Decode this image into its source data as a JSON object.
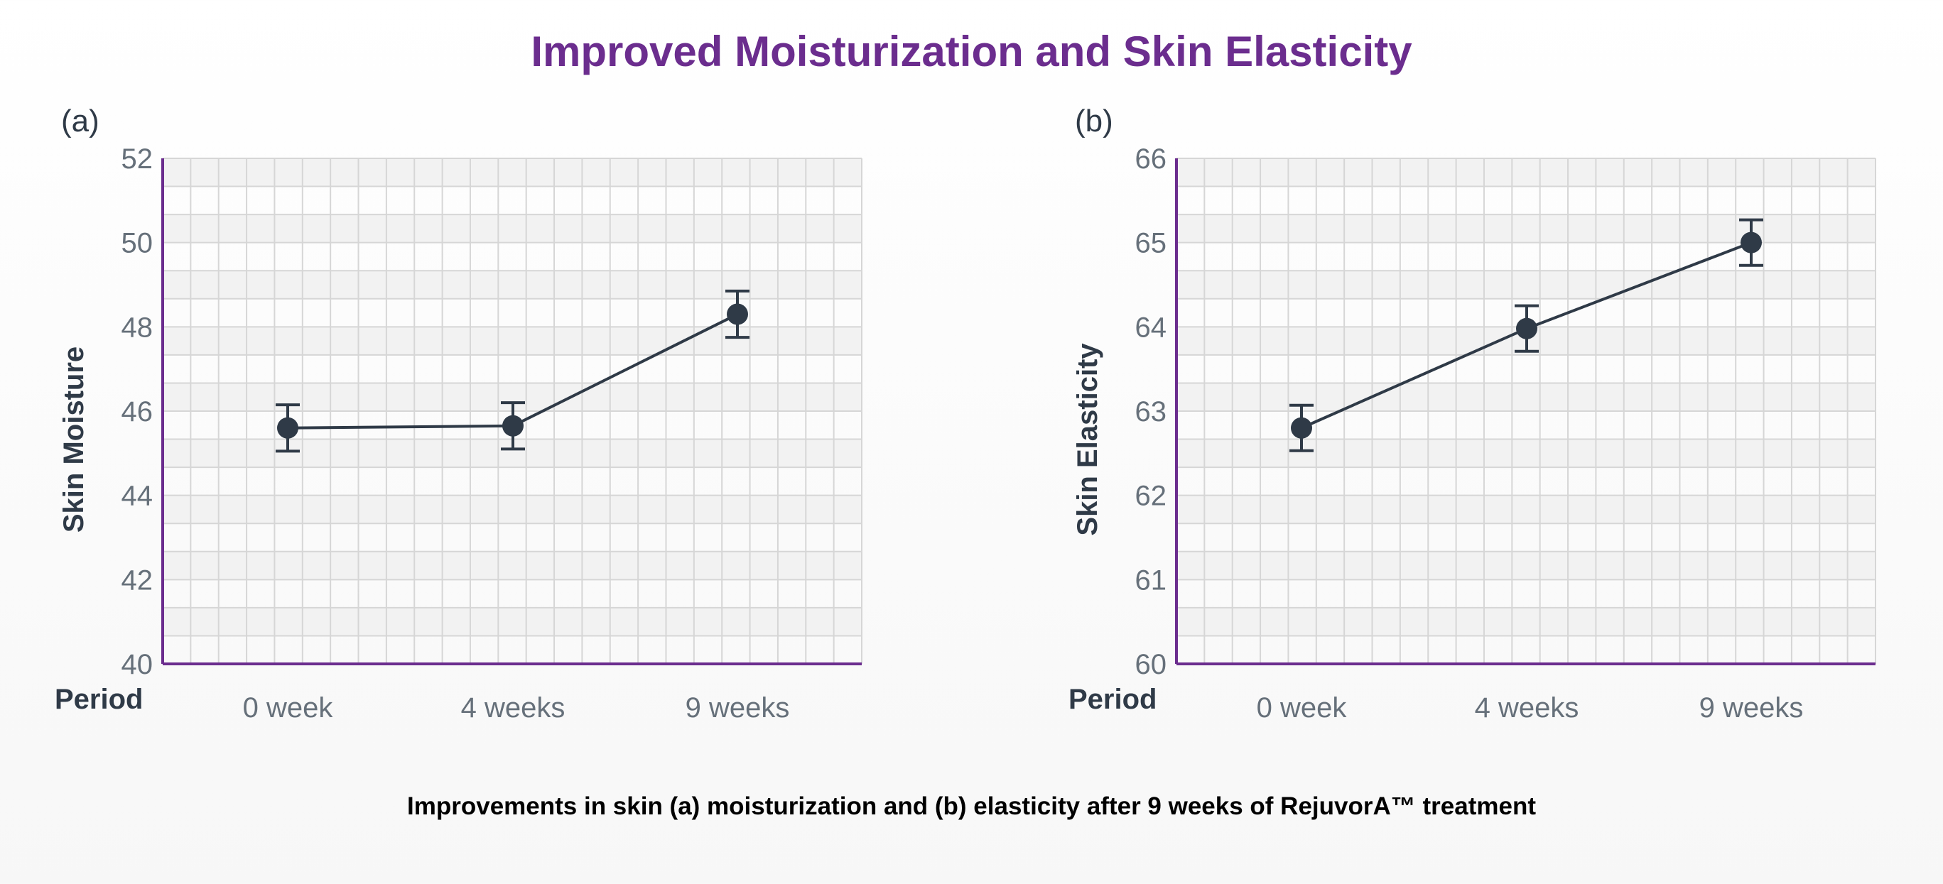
{
  "title": "Improved Moisturization and Skin Elasticity",
  "caption": "Improvements in skin (a) moisturization and (b) elasticity after 9 weeks of RejuvorA™ treatment",
  "colors": {
    "title": "#6b2d8e",
    "axis": "#6b2d8e",
    "series": "#2f3a47",
    "grid": "#d6d6d6",
    "band": "#f2f2f2"
  },
  "chart_data": [
    {
      "type": "line",
      "panel_label": "(a)",
      "title": "",
      "xlabel": "Period",
      "ylabel": "Skin Moisture",
      "categories": [
        "0 week",
        "4 weeks",
        "9 weeks"
      ],
      "ylim": [
        40,
        52
      ],
      "yticks": [
        40,
        42,
        44,
        46,
        48,
        50,
        52
      ],
      "grid": true,
      "series": [
        {
          "values": [
            45.6,
            45.65,
            48.3
          ],
          "error": [
            0.55,
            0.55,
            0.55
          ]
        }
      ]
    },
    {
      "type": "line",
      "panel_label": "(b)",
      "title": "",
      "xlabel": "Period",
      "ylabel": "Skin Elasticity",
      "categories": [
        "0 week",
        "4 weeks",
        "9 weeks"
      ],
      "ylim": [
        60,
        66
      ],
      "yticks": [
        60,
        61,
        62,
        63,
        64,
        65,
        66
      ],
      "grid": true,
      "series": [
        {
          "values": [
            62.8,
            63.98,
            65.0
          ],
          "error": [
            0.27,
            0.27,
            0.27
          ]
        }
      ]
    }
  ]
}
